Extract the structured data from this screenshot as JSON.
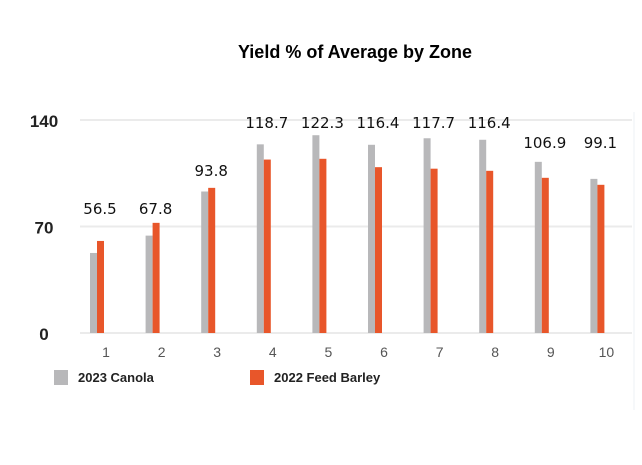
{
  "chart_data": {
    "type": "bar",
    "title": "Yield % of Average by Zone",
    "xlabel": "",
    "ylabel": "",
    "ylim": [
      0,
      140
    ],
    "yticks": [
      "0",
      "70",
      "140"
    ],
    "grid": true,
    "legend_position": "bottom-left",
    "categories": [
      "1",
      "2",
      "3",
      "4",
      "5",
      "6",
      "7",
      "8",
      "9",
      "10"
    ],
    "series": [
      {
        "name": "2023 Canola",
        "color": "#b8b8ba",
        "values": [
          52.6,
          64,
          93,
          124,
          130,
          123.7,
          128,
          127,
          112.5,
          101.3
        ]
      },
      {
        "name": "2022 Feed Barley",
        "color": "#e8562a",
        "values": [
          60.5,
          72.4,
          95.4,
          114,
          114.5,
          109,
          108,
          106.6,
          102,
          97.4
        ]
      }
    ],
    "data_labels": [
      "56.5",
      "67.8",
      "93.8",
      "118.7",
      "122.3",
      "116.4",
      "117.7",
      "116.4",
      "106.9",
      "99.1"
    ]
  }
}
